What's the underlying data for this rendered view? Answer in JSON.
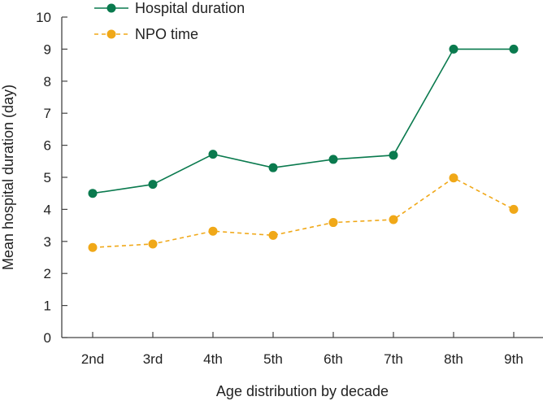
{
  "chart_data": {
    "type": "line",
    "categories": [
      "2nd",
      "3rd",
      "4th",
      "5th",
      "6th",
      "7th",
      "8th",
      "9th"
    ],
    "series": [
      {
        "name": "Hospital duration",
        "values": [
          4.5,
          4.78,
          5.72,
          5.3,
          5.56,
          5.69,
          9.0,
          9.0
        ],
        "color": "#0a7a4e",
        "line_style": "solid",
        "marker": "filled-circle"
      },
      {
        "name": "NPO time",
        "values": [
          2.81,
          2.92,
          3.32,
          3.19,
          3.59,
          3.68,
          4.98,
          4.0
        ],
        "color": "#f0a818",
        "line_style": "dashed",
        "marker": "filled-circle"
      }
    ],
    "title": "",
    "xlabel": "Age distribution by decade",
    "ylabel": "Mean hospital duration (day)",
    "ylim": [
      0,
      10
    ],
    "yticks": [
      0,
      1,
      2,
      3,
      4,
      5,
      6,
      7,
      8,
      9,
      10
    ],
    "grid": false,
    "legend_position": "top-left"
  }
}
